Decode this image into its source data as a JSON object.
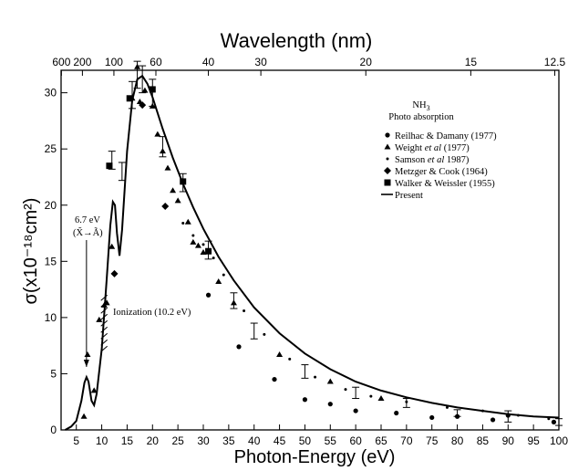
{
  "chart_data": {
    "type": "scatter",
    "title": "",
    "xlabel": "Photon-Energy (eV)",
    "ylabel": "σ(x10⁻¹⁸cm²)",
    "top_axis_label": "Wavelength (nm)",
    "xlim": [
      2,
      100
    ],
    "ylim": [
      0,
      32
    ],
    "x_scale": "reciprocal",
    "x_ticks": [
      5,
      10,
      15,
      20,
      25,
      30,
      35,
      40,
      45,
      50,
      55,
      60,
      65,
      70,
      75,
      80,
      85,
      90,
      95,
      100
    ],
    "x_tick_labels": [
      "5",
      "10",
      "15",
      "20",
      "25",
      "30",
      "35",
      "40",
      "45",
      "50",
      "55",
      "60",
      "65",
      "70",
      "75",
      "80",
      "85",
      "90",
      "95",
      "100"
    ],
    "y_ticks": [
      0,
      5,
      10,
      15,
      20,
      25,
      30
    ],
    "y_tick_labels": [
      "0",
      "5",
      "10",
      "15",
      "20",
      "25",
      "30"
    ],
    "top_ticks": [
      600,
      200,
      100,
      60,
      40,
      30,
      20,
      15,
      12.5
    ],
    "top_tick_labels": [
      "600",
      "200",
      "100",
      "60",
      "40",
      "30",
      "20",
      "15",
      "12.5"
    ],
    "legend": {
      "title_line1": "NH",
      "title_sub": "3",
      "title_line2": "Photo absorption",
      "placement": "top-right"
    },
    "series": [
      {
        "name": "Reilhac & Damany (1977)",
        "marker": "circle",
        "points": [
          [
            31,
            12
          ],
          [
            37,
            7.4
          ],
          [
            44,
            4.5
          ],
          [
            50,
            2.7
          ],
          [
            55,
            2.3
          ],
          [
            60,
            1.7
          ],
          [
            68,
            1.5
          ],
          [
            75,
            1.1
          ],
          [
            80,
            1.2
          ],
          [
            87,
            0.9
          ],
          [
            90,
            1.3
          ],
          [
            99,
            0.7
          ]
        ]
      },
      {
        "name_pre": "Weight ",
        "name_em": "et al",
        "name_post": " (1977)",
        "marker": "triangle",
        "points": [
          [
            6.5,
            1.2
          ],
          [
            7.2,
            6.7
          ],
          [
            8.5,
            3.5
          ],
          [
            9.5,
            9.8
          ],
          [
            10.5,
            11.1
          ],
          [
            11,
            11.3
          ],
          [
            12,
            16.3
          ],
          [
            16,
            29.5
          ],
          [
            17,
            32.3
          ],
          [
            17.5,
            29.2
          ],
          [
            18.5,
            30.2
          ],
          [
            20,
            28.8
          ],
          [
            21,
            26.3
          ],
          [
            22,
            24.8
          ],
          [
            23,
            23.3
          ],
          [
            24,
            21.3
          ],
          [
            25,
            20.4
          ],
          [
            27,
            18.5
          ],
          [
            28,
            16.7
          ],
          [
            29,
            16.4
          ],
          [
            30,
            15.8
          ],
          [
            33,
            13.2
          ],
          [
            36,
            11.3
          ],
          [
            45,
            6.7
          ],
          [
            55,
            4.3
          ],
          [
            65,
            2.8
          ]
        ]
      },
      {
        "name_pre": "Samson ",
        "name_em": "et al",
        "name_post": " 1987)",
        "marker": "dot",
        "points": [
          [
            26,
            18.4
          ],
          [
            28,
            17.3
          ],
          [
            30,
            16.5
          ],
          [
            32,
            15.3
          ],
          [
            34,
            13.8
          ],
          [
            38,
            10.6
          ],
          [
            42,
            8.5
          ],
          [
            47,
            6.3
          ],
          [
            52,
            4.7
          ],
          [
            58,
            3.6
          ],
          [
            63,
            3.0
          ],
          [
            70,
            2.5
          ],
          [
            78,
            2.0
          ],
          [
            85,
            1.7
          ],
          [
            92,
            1.3
          ],
          [
            98,
            1.0
          ]
        ]
      },
      {
        "name": "Metzger & Cook (1964)",
        "marker": "diamond",
        "points": [
          [
            12.5,
            13.9
          ],
          [
            18,
            28.9
          ],
          [
            22.5,
            19.9
          ]
        ]
      },
      {
        "name": "Walker & Weissler (1955)",
        "marker": "square",
        "points": [
          [
            11.5,
            23.5
          ],
          [
            15.5,
            29.5
          ],
          [
            20,
            30.3
          ],
          [
            26,
            22.1
          ],
          [
            31,
            15.9
          ]
        ]
      },
      {
        "name": "Present",
        "marker": "line",
        "curve": [
          [
            2.8,
            0
          ],
          [
            4,
            0.3
          ],
          [
            5,
            0.8
          ],
          [
            6,
            2.6
          ],
          [
            6.6,
            4.2
          ],
          [
            7,
            4.7
          ],
          [
            7.4,
            4.3
          ],
          [
            8,
            2.6
          ],
          [
            8.5,
            2.2
          ],
          [
            9,
            3.2
          ],
          [
            10,
            7.2
          ],
          [
            11,
            13.5
          ],
          [
            11.7,
            18.2
          ],
          [
            12.2,
            20.3
          ],
          [
            12.6,
            20.0
          ],
          [
            13,
            17.5
          ],
          [
            13.5,
            15.5
          ],
          [
            14,
            17.8
          ],
          [
            15,
            24.8
          ],
          [
            16,
            29.3
          ],
          [
            17,
            31.2
          ],
          [
            18,
            31.5
          ],
          [
            19,
            30.8
          ],
          [
            20,
            29.6
          ],
          [
            22,
            26.8
          ],
          [
            24,
            24.2
          ],
          [
            26,
            21.9
          ],
          [
            28,
            19.8
          ],
          [
            30,
            17.9
          ],
          [
            33,
            15.4
          ],
          [
            36,
            13.3
          ],
          [
            40,
            10.9
          ],
          [
            45,
            8.6
          ],
          [
            50,
            6.8
          ],
          [
            55,
            5.4
          ],
          [
            60,
            4.3
          ],
          [
            65,
            3.5
          ],
          [
            70,
            2.9
          ],
          [
            75,
            2.4
          ],
          [
            80,
            2.0
          ],
          [
            85,
            1.7
          ],
          [
            90,
            1.4
          ],
          [
            95,
            1.2
          ],
          [
            100,
            1.1
          ]
        ]
      }
    ],
    "error_bars": [
      [
        12,
        24,
        0.8
      ],
      [
        14,
        23,
        0.8
      ],
      [
        16,
        29.8,
        1.2
      ],
      [
        17,
        31.6,
        1.2
      ],
      [
        18,
        31.2,
        1.2
      ],
      [
        20,
        30,
        1.2
      ],
      [
        22,
        25.2,
        0.9
      ],
      [
        26,
        22,
        0.8
      ],
      [
        31,
        16,
        0.8
      ],
      [
        36,
        11.5,
        0.7
      ],
      [
        40,
        8.8,
        0.7
      ],
      [
        50,
        5.2,
        0.6
      ],
      [
        60,
        3.3,
        0.5
      ],
      [
        70,
        2.4,
        0.4
      ],
      [
        80,
        1.5,
        0.3
      ],
      [
        90,
        1.2,
        0.5
      ],
      [
        100,
        0.7,
        0.3
      ]
    ],
    "annotations": {
      "excitation_line1": "6.7 eV",
      "excitation_line2": "(X̃→Ã)",
      "ionization": "Ionization (10.2 eV)"
    }
  }
}
